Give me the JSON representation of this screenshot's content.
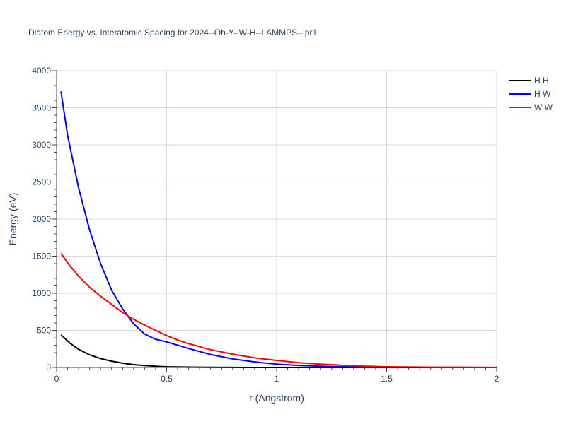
{
  "chart_data": {
    "type": "line",
    "title": "Diatom Energy vs. Interatomic Spacing for 2024--Oh-Y--W-H--LAMMPS--ipr1",
    "xlabel": "r (Angstrom)",
    "ylabel": "Energy (eV)",
    "xlim": [
      0,
      2
    ],
    "ylim": [
      0,
      4000
    ],
    "xticks": [
      0,
      0.5,
      1,
      1.5,
      2
    ],
    "xtick_labels": [
      "0",
      "0.5",
      "1",
      "1.5",
      "2"
    ],
    "yticks": [
      0,
      500,
      1000,
      1500,
      2000,
      2500,
      3000,
      3500,
      4000
    ],
    "ytick_labels": [
      "0",
      "500",
      "1000",
      "1500",
      "2000",
      "2500",
      "3000",
      "3500",
      "4000"
    ],
    "grid": true,
    "legend_position": "top-right",
    "series": [
      {
        "name": "H H",
        "color": "#000000",
        "x": [
          0.02,
          0.06,
          0.1,
          0.15,
          0.2,
          0.25,
          0.3,
          0.35,
          0.4,
          0.45,
          0.5,
          0.6,
          0.7,
          0.8,
          0.9,
          1.0,
          1.2,
          1.5,
          2.0
        ],
        "y": [
          440,
          330,
          245,
          170,
          120,
          85,
          58,
          38,
          26,
          17,
          10,
          5,
          2,
          1,
          0,
          0,
          0,
          0,
          0
        ]
      },
      {
        "name": "H W",
        "color": "#0000ff",
        "x": [
          0.02,
          0.05,
          0.1,
          0.15,
          0.2,
          0.25,
          0.3,
          0.35,
          0.4,
          0.45,
          0.5,
          0.55,
          0.6,
          0.7,
          0.8,
          0.9,
          1.0,
          1.1,
          1.2,
          1.3,
          1.4,
          1.5,
          1.7,
          2.0
        ],
        "y": [
          3720,
          3130,
          2420,
          1850,
          1400,
          1040,
          790,
          590,
          450,
          380,
          345,
          300,
          255,
          175,
          115,
          75,
          45,
          28,
          17,
          10,
          6,
          3,
          1,
          0
        ]
      },
      {
        "name": "W W",
        "color": "#ff0000",
        "x": [
          0.02,
          0.05,
          0.1,
          0.15,
          0.2,
          0.25,
          0.3,
          0.35,
          0.4,
          0.45,
          0.5,
          0.55,
          0.6,
          0.7,
          0.8,
          0.9,
          1.0,
          1.1,
          1.2,
          1.3,
          1.4,
          1.5,
          1.7,
          2.0
        ],
        "y": [
          1540,
          1410,
          1230,
          1080,
          960,
          850,
          740,
          650,
          570,
          500,
          430,
          370,
          320,
          240,
          180,
          130,
          95,
          65,
          45,
          30,
          18,
          10,
          4,
          1
        ]
      }
    ]
  }
}
